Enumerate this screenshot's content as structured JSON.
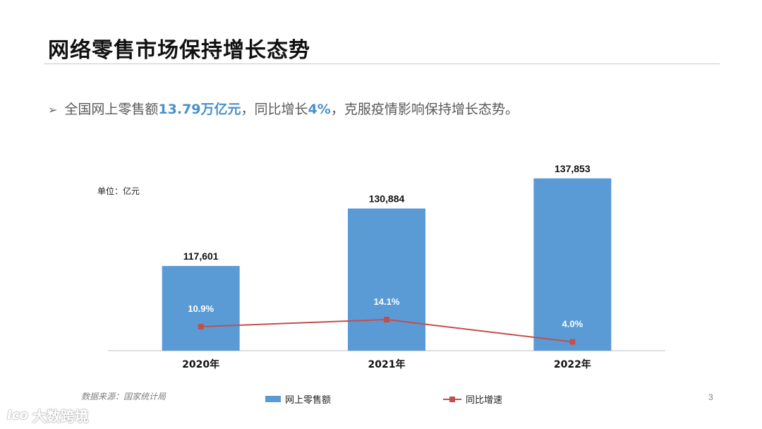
{
  "slide": {
    "title": "网络零售市场保持增长态势",
    "bullet": {
      "marker": "➢",
      "t1": "全国网上零售额",
      "h1": "13.79万亿元",
      "t2": "，同比增长",
      "h2": "4%",
      "t3": "，克服疫情影响保持增长态势。"
    },
    "unit_label": "单位：亿元",
    "source": "数据来源：国家统计局",
    "page_number": "3",
    "watermark": {
      "logo": "Ico",
      "text": "大数跨境"
    }
  },
  "colors": {
    "bar": "#5b9bd5",
    "line": "#c0504d",
    "accent": "#4a90c8"
  },
  "chart_data": {
    "type": "bar",
    "categories": [
      "2020年",
      "2021年",
      "2022年"
    ],
    "series": [
      {
        "name": "网上零售额",
        "type": "bar",
        "values": [
          117601,
          130884,
          137853
        ],
        "labels": [
          "117,601",
          "130,884",
          "137,853"
        ]
      },
      {
        "name": "同比增速",
        "type": "line",
        "values": [
          10.9,
          14.1,
          4.0
        ],
        "labels": [
          "10.9%",
          "14.1%",
          "4.0%"
        ]
      }
    ],
    "unit": "亿元",
    "ylim_bar": [
      98000,
      138800
    ],
    "ylim_line": [
      0,
      80
    ]
  }
}
